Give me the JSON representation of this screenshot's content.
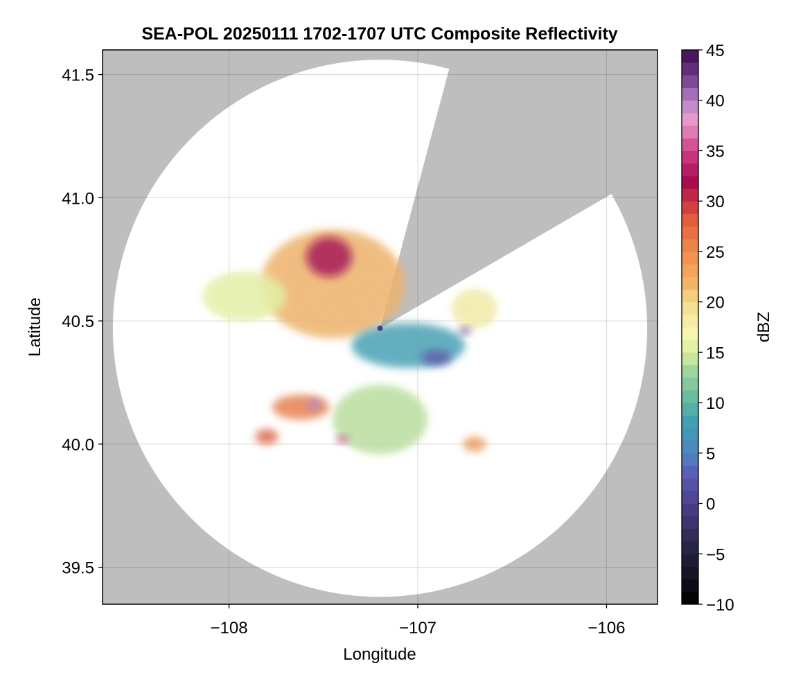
{
  "chart_data": {
    "type": "heatmap",
    "title": "SEA-POL 20250111 1702-1707 UTC Composite Reflectivity",
    "xlabel": "Longitude",
    "ylabel": "Latitude",
    "xlim": [
      -108.67,
      -105.73
    ],
    "ylim": [
      39.35,
      41.6
    ],
    "xticks": [
      -108,
      -107,
      -106
    ],
    "xtick_labels": [
      "−108",
      "−107",
      "−106"
    ],
    "yticks": [
      39.5,
      40.0,
      40.5,
      41.0,
      41.5
    ],
    "ytick_labels": [
      "39.5",
      "40.0",
      "40.5",
      "41.0",
      "41.5"
    ],
    "grid": true,
    "background_color": "#bebebe",
    "coverage_color": "#ffffff",
    "radar_site": {
      "lon": -107.2,
      "lat": 40.47
    },
    "radar_range_deg_lat": 1.09,
    "blocked_sectors_azimuth_deg": [
      [
        15,
        60
      ]
    ],
    "colorbar": {
      "label": "dBZ",
      "range": [
        -10,
        45
      ],
      "ticks": [
        -10,
        -5,
        0,
        5,
        10,
        15,
        20,
        25,
        30,
        35,
        40,
        45
      ],
      "tick_labels": [
        "−10",
        "−5",
        "0",
        "5",
        "10",
        "15",
        "20",
        "25",
        "30",
        "35",
        "40",
        "45"
      ],
      "colormap": [
        [
          -10,
          "#000000"
        ],
        [
          -5,
          "#22213a"
        ],
        [
          0,
          "#4d3f8e"
        ],
        [
          3,
          "#5a5fb5"
        ],
        [
          5,
          "#4f83c2"
        ],
        [
          8,
          "#3fa0b4"
        ],
        [
          10,
          "#5fb69f"
        ],
        [
          13,
          "#9bd39e"
        ],
        [
          15,
          "#d9ef9a"
        ],
        [
          17,
          "#f7f8b2"
        ],
        [
          20,
          "#f5d98b"
        ],
        [
          22,
          "#f2b264"
        ],
        [
          25,
          "#ef8c4a"
        ],
        [
          28,
          "#e2603e"
        ],
        [
          30,
          "#cc3340"
        ],
        [
          32,
          "#a6094f"
        ],
        [
          35,
          "#cf4088"
        ],
        [
          38,
          "#e99ccc"
        ],
        [
          40,
          "#b582c6"
        ],
        [
          42,
          "#7b4592"
        ],
        [
          45,
          "#3d0a4f"
        ]
      ]
    },
    "echo_regions": [
      {
        "name": "northwest-stratiform-mass",
        "lon": -107.45,
        "lat": 40.65,
        "radius_lon": 0.38,
        "radius_lat": 0.22,
        "dbz": 22
      },
      {
        "name": "northwest-core",
        "lon": -107.47,
        "lat": 40.76,
        "radius_lon": 0.12,
        "radius_lat": 0.08,
        "dbz": 32
      },
      {
        "name": "western-light-band",
        "lon": -107.92,
        "lat": 40.6,
        "radius_lon": 0.22,
        "radius_lat": 0.1,
        "dbz": 16
      },
      {
        "name": "central-weak-band",
        "lon": -107.05,
        "lat": 40.4,
        "radius_lon": 0.3,
        "radius_lat": 0.09,
        "dbz": 8
      },
      {
        "name": "central-minimum",
        "lon": -106.9,
        "lat": 40.35,
        "radius_lon": 0.08,
        "radius_lat": 0.03,
        "dbz": 2
      },
      {
        "name": "eastern-cell",
        "lon": -106.7,
        "lat": 40.55,
        "radius_lon": 0.12,
        "radius_lat": 0.08,
        "dbz": 18
      },
      {
        "name": "eastern-cell-core",
        "lon": -106.75,
        "lat": 40.46,
        "radius_lon": 0.03,
        "radius_lat": 0.015,
        "dbz": 42
      },
      {
        "name": "southern-mass",
        "lon": -107.2,
        "lat": 40.1,
        "radius_lon": 0.25,
        "radius_lat": 0.14,
        "dbz": 14
      },
      {
        "name": "southwest-cells",
        "lon": -107.62,
        "lat": 40.15,
        "radius_lon": 0.15,
        "radius_lat": 0.05,
        "dbz": 26
      },
      {
        "name": "southwest-core",
        "lon": -107.55,
        "lat": 40.16,
        "radius_lon": 0.04,
        "radius_lat": 0.02,
        "dbz": 40
      },
      {
        "name": "far-southwest-cell",
        "lon": -107.8,
        "lat": 40.03,
        "radius_lon": 0.06,
        "radius_lat": 0.03,
        "dbz": 28
      },
      {
        "name": "south-small-core",
        "lon": -107.4,
        "lat": 40.02,
        "radius_lon": 0.03,
        "radius_lat": 0.015,
        "dbz": 35
      },
      {
        "name": "southeast-fragments",
        "lon": -106.7,
        "lat": 40.0,
        "radius_lon": 0.06,
        "radius_lat": 0.03,
        "dbz": 24
      }
    ]
  }
}
